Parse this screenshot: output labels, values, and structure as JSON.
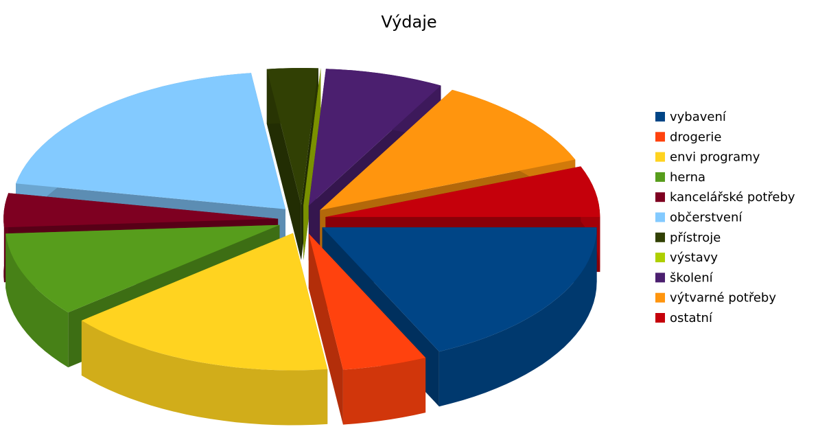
{
  "chart_data": {
    "type": "pie",
    "title": "Výdaje",
    "categories": [
      "vybavení",
      "drogerie",
      "envi programy",
      "herna",
      "kancelářské potřeby",
      "občerstvení",
      "přístroje",
      "výstavy",
      "školení",
      "výtvarné potřeby",
      "ostatní"
    ],
    "values": [
      18,
      5,
      16,
      10,
      4,
      20,
      3,
      0,
      7,
      11,
      6
    ],
    "colors": [
      "#004586",
      "#ff420e",
      "#ffd320",
      "#579d1c",
      "#7e0021",
      "#83caff",
      "#314004",
      "#aecf00",
      "#4b1f6f",
      "#ff950e",
      "#c5000b"
    ],
    "legend": "right"
  }
}
